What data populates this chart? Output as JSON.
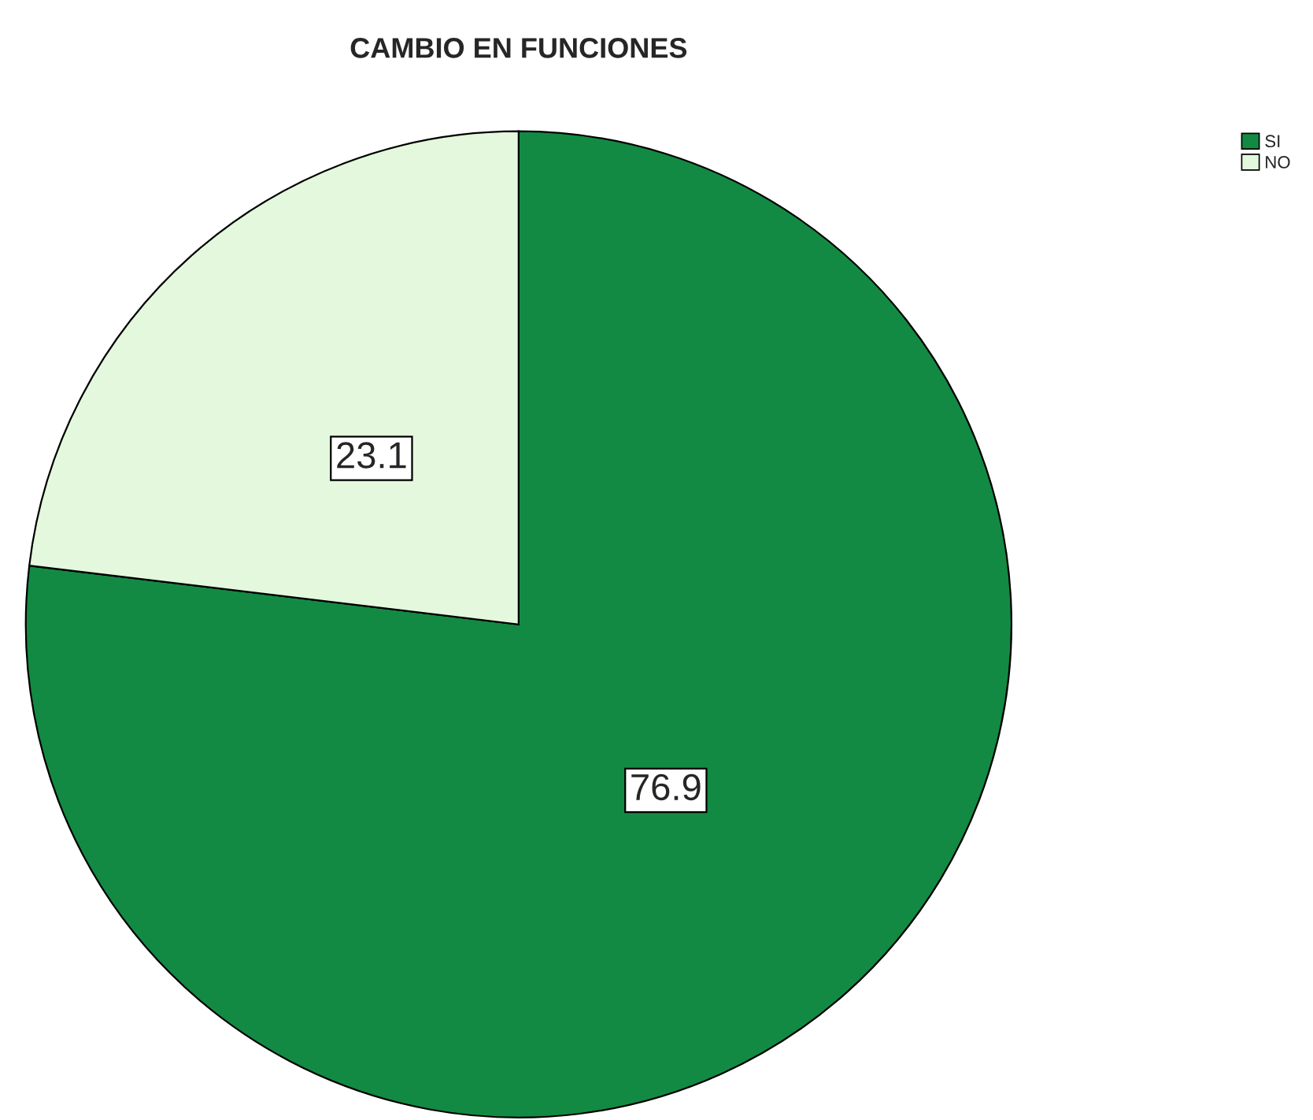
{
  "chart_data": {
    "type": "pie",
    "title": "CAMBIO EN FUNCIONES",
    "categories": [
      "SI",
      "NO"
    ],
    "values": [
      76.9,
      23.1
    ],
    "colors": [
      "#138a43",
      "#e3f8dc"
    ],
    "data_labels": true,
    "legend": "top right"
  }
}
